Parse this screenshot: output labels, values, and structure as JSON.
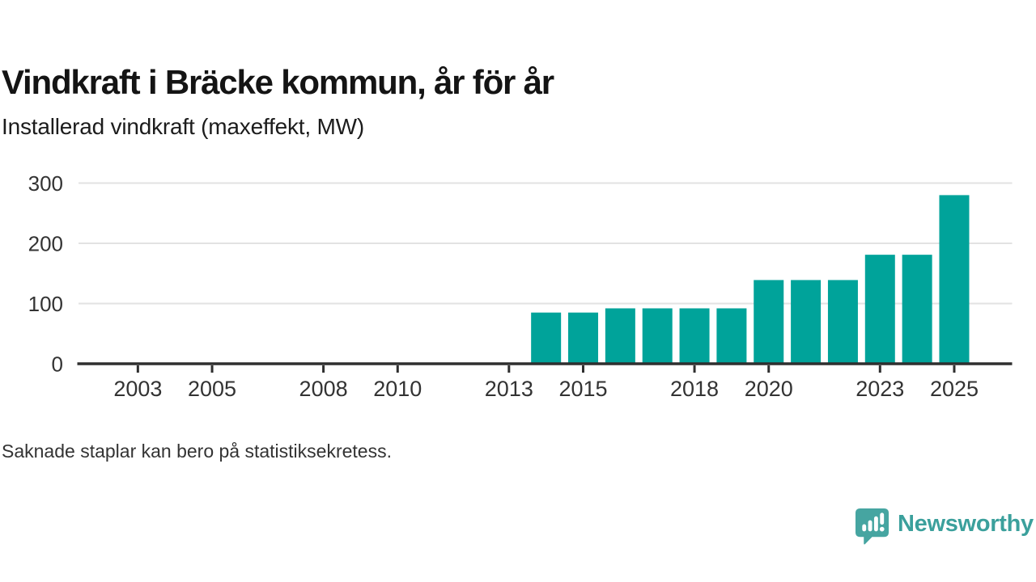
{
  "page": {
    "title": "Vindkraft i Bräcke kommun, år för år",
    "subtitle": "Installerad vindkraft (maxeffekt, MW)",
    "footnote": "Saknade staplar kan bero på statistiksekretess.",
    "background_color": "#ffffff"
  },
  "branding": {
    "logo_text": "Newsworthy",
    "logo_icon": "newsworthy-speech-bubble-with-bar-chart-and-exclamation",
    "logo_color": "#3ba09c",
    "logo_icon_color": "#46a5a1"
  },
  "chart_data": {
    "type": "bar",
    "title": "Vindkraft i Bräcke kommun, år för år",
    "subtitle": "Installerad vindkraft (maxeffekt, MW)",
    "note": "Saknade staplar kan bero på statistiksekretess.",
    "unit": "MW",
    "categories": [
      2014,
      2015,
      2016,
      2017,
      2018,
      2019,
      2020,
      2021,
      2022,
      2023,
      2024,
      2025
    ],
    "values": [
      85,
      85,
      92,
      92,
      92,
      92,
      139,
      139,
      139,
      181,
      181,
      280
    ],
    "x_tick_years": [
      2003,
      2005,
      2008,
      2010,
      2013,
      2015,
      2018,
      2020,
      2023,
      2025
    ],
    "y_ticks": [
      0,
      100,
      200,
      300
    ],
    "x_range": [
      2001.4,
      2026.56
    ],
    "ylim": [
      0,
      310
    ],
    "grid": "horizontal",
    "legend": "none",
    "colors": {
      "bar": "#00a39a",
      "axis": "#2f2f2f",
      "gridline": "#e2e2e2",
      "tick_label": "#333333"
    }
  }
}
